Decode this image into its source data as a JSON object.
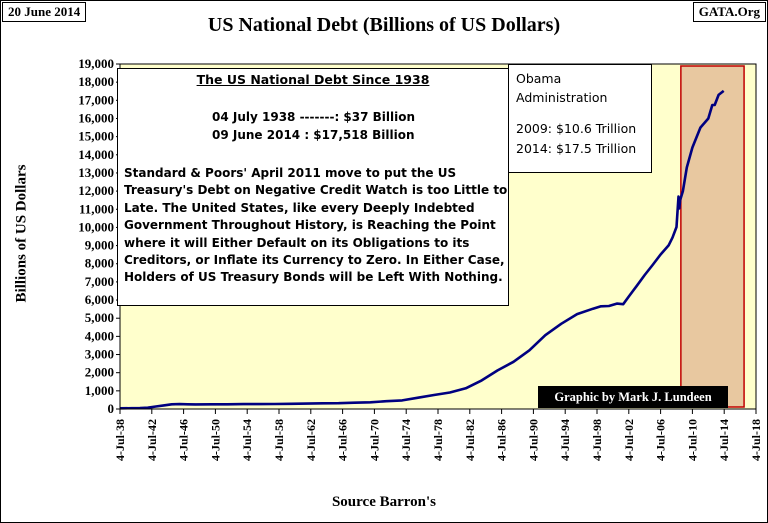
{
  "header": {
    "date": "20 June 2014",
    "source_tag": "GATA.Org"
  },
  "chart_data": {
    "type": "line",
    "title": "US National Debt (Billions of US Dollars)",
    "ylabel": "Billions of US Dollars",
    "xlabel": "Source Barron's",
    "ylim": [
      0,
      19000
    ],
    "xlim": [
      1938.5,
      2018.5
    ],
    "grid": false,
    "background_color": "#FFFFCC",
    "line_color": "#000080",
    "highlight_color": "#E8C8A0",
    "highlight_border_color": "#C00000",
    "y_ticks": [
      "0",
      "1,000",
      "2,000",
      "3,000",
      "4,000",
      "5,000",
      "6,000",
      "7,000",
      "8,000",
      "9,000",
      "10,000",
      "11,000",
      "12,000",
      "13,000",
      "14,000",
      "15,000",
      "16,000",
      "17,000",
      "18,000",
      "19,000"
    ],
    "x_ticks": [
      "4-Jul-38",
      "4-Jul-42",
      "4-Jul-46",
      "4-Jul-50",
      "4-Jul-54",
      "4-Jul-58",
      "4-Jul-62",
      "4-Jul-66",
      "4-Jul-70",
      "4-Jul-74",
      "4-Jul-78",
      "4-Jul-82",
      "4-Jul-86",
      "4-Jul-90",
      "4-Jul-94",
      "4-Jul-98",
      "4-Jul-02",
      "4-Jul-06",
      "4-Jul-10",
      "4-Jul-14",
      "4-Jul-18"
    ],
    "highlight_range": {
      "label": "Obama Administration",
      "start": 2009.05,
      "end": 2017.0
    },
    "series": [
      {
        "name": "US National Debt",
        "x": [
          1938.5,
          1940,
          1941,
          1942,
          1943,
          1944,
          1945,
          1946,
          1947,
          1948,
          1950,
          1952,
          1954,
          1956,
          1958,
          1960,
          1962,
          1964,
          1966,
          1968,
          1970,
          1972,
          1974,
          1976,
          1978,
          1980,
          1982,
          1984,
          1986,
          1988,
          1990,
          1992,
          1994,
          1996,
          1998,
          1999,
          2000,
          2001,
          2001.8,
          2002.5,
          2003.5,
          2004.5,
          2005.5,
          2006.5,
          2007.5,
          2008,
          2008.5,
          2008.75,
          2008.85,
          2008.95,
          2009.3,
          2009.8,
          2010.5,
          2011.5,
          2012.5,
          2013,
          2013.3,
          2013.8,
          2014.44
        ],
        "y": [
          37,
          43,
          49,
          72,
          137,
          201,
          259,
          269,
          258,
          252,
          257,
          259,
          271,
          272,
          276,
          286,
          298,
          312,
          320,
          348,
          370,
          427,
          475,
          620,
          771,
          908,
          1142,
          1573,
          2125,
          2602,
          3233,
          4065,
          4693,
          5225,
          5526,
          5656,
          5674,
          5807,
          5770,
          6198,
          6783,
          7379,
          7933,
          8507,
          9008,
          9437,
          10025,
          11700,
          11050,
          11500,
          12000,
          13300,
          14400,
          15500,
          16000,
          16740,
          16740,
          17300,
          17518
        ]
      }
    ]
  },
  "info_box": {
    "title": "The US National Debt Since 1938",
    "line1": "04 July 1938 -------: $37 Billion",
    "line2": "09 June 2014 : $17,518 Billion",
    "paragraph": "Standard & Poors' April 2011 move to put the US Treasury's Debt on Negative Credit Watch is too Little to Late.  The United States, like every Deeply Indebted Government Throughout History, is Reaching the Point where it will Either Default on its Obligations to its Creditors, or Inflate its Currency to Zero.  In Either Case, Holders of US Treasury Bonds will be Left With Nothing."
  },
  "obama_box": {
    "line1": "Obama",
    "line2": "Administration",
    "line3": "2009: $10.6 Trillion",
    "line4": "2014: $17.5 Trillion"
  },
  "credit": "Graphic by Mark J. Lundeen"
}
